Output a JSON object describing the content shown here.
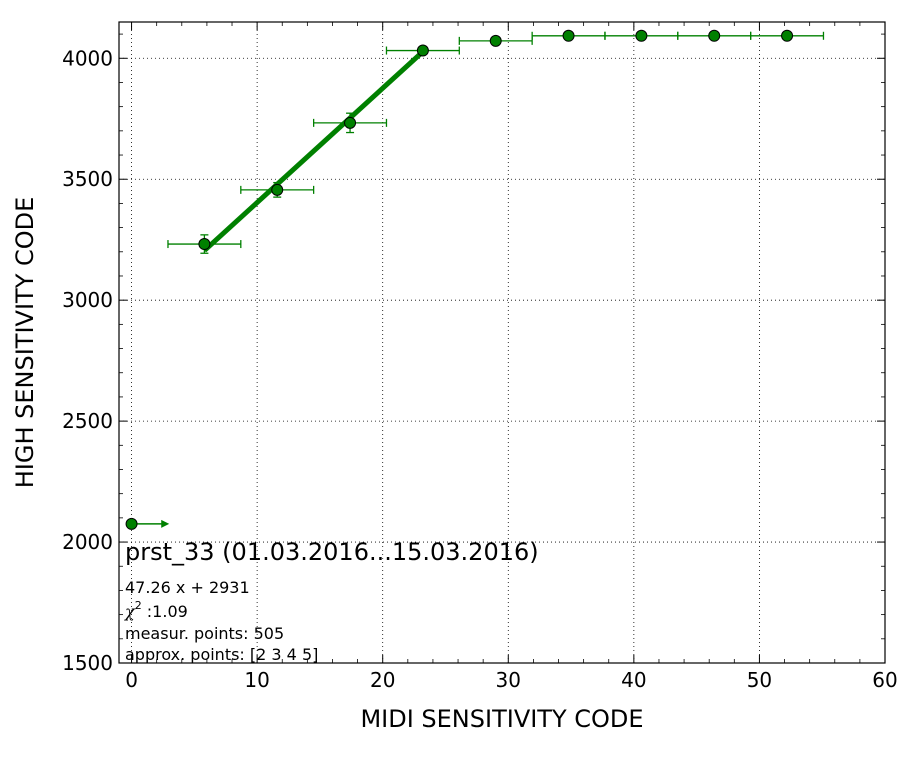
{
  "chart_data": {
    "type": "scatter",
    "xlabel": "MIDI SENSITIVITY CODE",
    "ylabel": "HIGH SENSITIVITY CODE",
    "xlim": [
      -1,
      60
    ],
    "ylim": [
      1500,
      4150
    ],
    "xticks": [
      0,
      10,
      20,
      30,
      40,
      50,
      60
    ],
    "yticks": [
      1500,
      2000,
      2500,
      3000,
      3500,
      4000
    ],
    "grid": true,
    "color": "#008000",
    "points": [
      {
        "x": 0,
        "y": 2075,
        "xerr": null,
        "yerr": null,
        "arrow_right_to": 3
      },
      {
        "x": 5.8,
        "y": 3232,
        "xerr": 2.9,
        "yerr": 38
      },
      {
        "x": 11.6,
        "y": 3456,
        "xerr": 2.9,
        "yerr": 30
      },
      {
        "x": 17.4,
        "y": 3733,
        "xerr": 2.9,
        "yerr": 40
      },
      {
        "x": 23.2,
        "y": 4032,
        "xerr": 2.9,
        "yerr": 0
      },
      {
        "x": 29.0,
        "y": 4072,
        "xerr": 2.9,
        "yerr": 0
      },
      {
        "x": 34.8,
        "y": 4093,
        "xerr": 2.9,
        "yerr": 0
      },
      {
        "x": 40.6,
        "y": 4093,
        "xerr": 2.9,
        "yerr": 0
      },
      {
        "x": 46.4,
        "y": 4093,
        "xerr": 2.9,
        "yerr": 0
      },
      {
        "x": 52.2,
        "y": 4093,
        "xerr": 2.9,
        "yerr": 0
      }
    ],
    "fit": {
      "slope": 47.26,
      "intercept": 2931,
      "x_range": [
        5.8,
        23.2
      ]
    },
    "annotations": {
      "title": "prst_33 (01.03.2016...15.03.2016)",
      "equation": "47.26 x + 2931",
      "chi2_symbol": "χ",
      "chi2_sup": "2",
      "chi2_value": " :1.09",
      "measur": "measur. points: 505",
      "approx": "approx. points: [2 3 4 5]"
    }
  }
}
